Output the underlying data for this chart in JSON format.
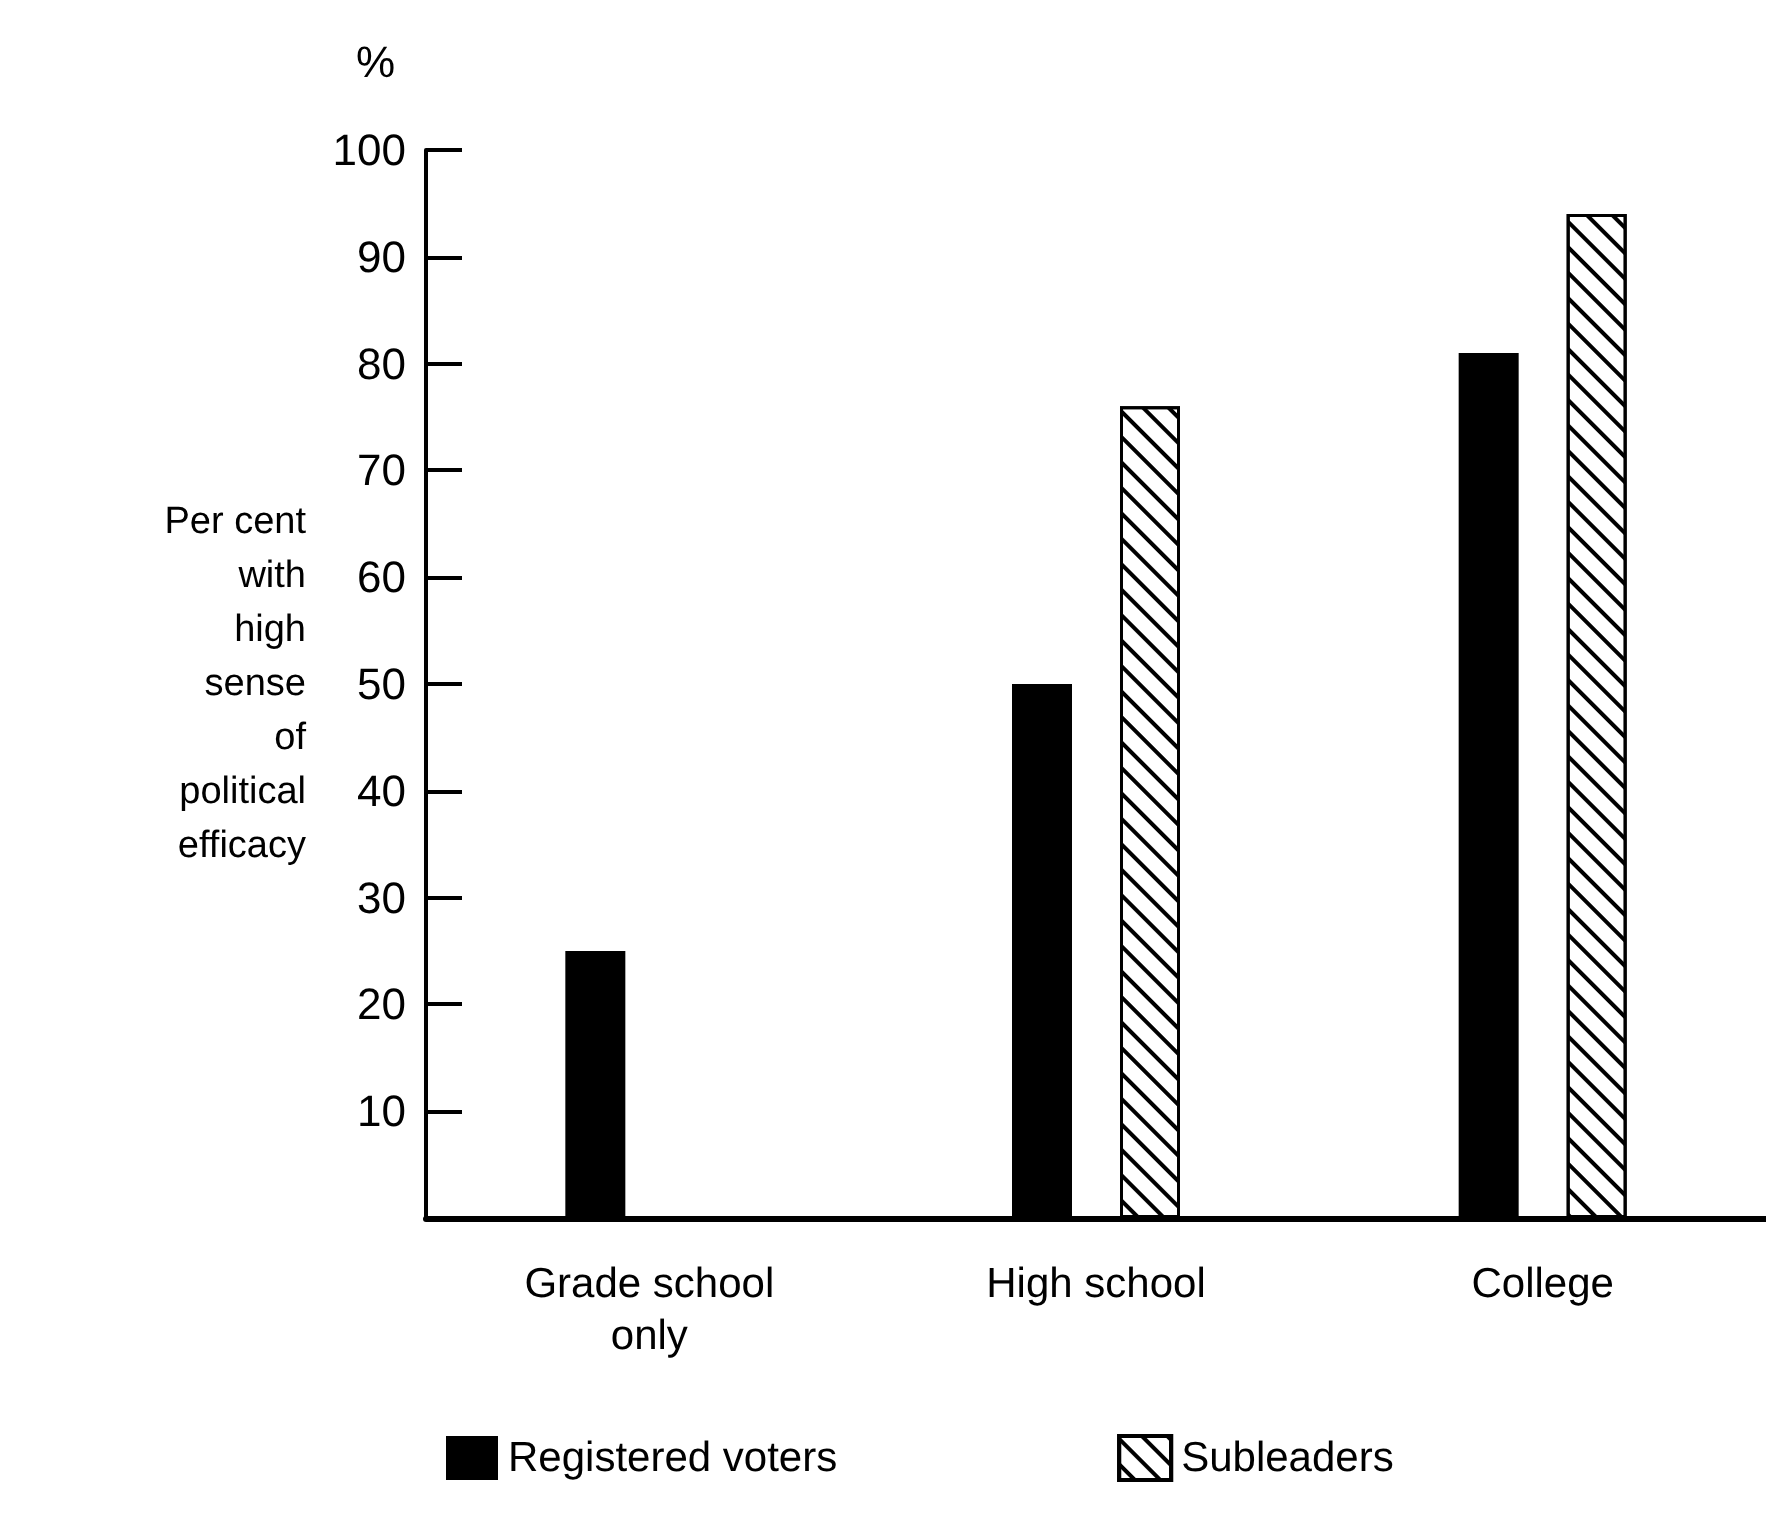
{
  "chart_data": {
    "type": "bar",
    "ylabel": "Per cent\nwith\nhigh\nsense\nof\npolitical\nefficacy",
    "annotations": [
      "%"
    ],
    "categories": [
      "Grade school\nonly",
      "High school",
      "College"
    ],
    "series": [
      {
        "name": "Registered voters",
        "color": "#000000",
        "values": [
          25,
          50,
          81
        ]
      },
      {
        "name": "Subleaders",
        "color": "#ffffff",
        "values": [
          null,
          76,
          94
        ]
      }
    ],
    "ylim": [
      0,
      100
    ],
    "yticks": [
      10,
      20,
      30,
      40,
      50,
      60,
      70,
      80,
      90,
      100
    ],
    "grid": false,
    "legend": "bottom"
  }
}
